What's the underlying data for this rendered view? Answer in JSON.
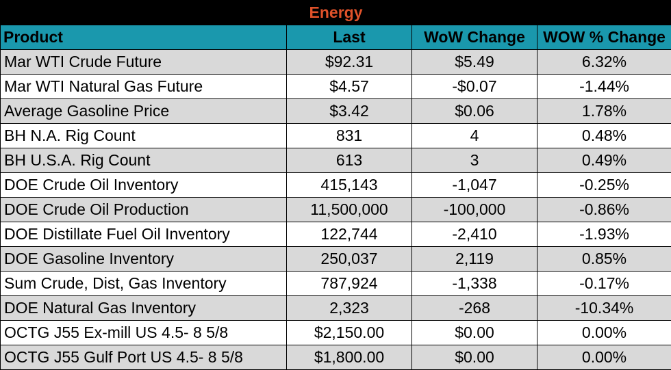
{
  "table": {
    "title": "Energy",
    "headers": [
      "Product",
      "Last",
      "WoW Change",
      "WOW % Change"
    ],
    "rows": [
      [
        "Mar WTI Crude Future",
        "$92.31",
        "$5.49",
        "6.32%"
      ],
      [
        "Mar WTI Natural Gas Future",
        "$4.57",
        "-$0.07",
        "-1.44%"
      ],
      [
        "Average Gasoline Price",
        "$3.42",
        "$0.06",
        "1.78%"
      ],
      [
        "BH N.A. Rig Count",
        "831",
        "4",
        "0.48%"
      ],
      [
        "BH U.S.A. Rig Count",
        "613",
        "3",
        "0.49%"
      ],
      [
        "DOE Crude Oil Inventory",
        "415,143",
        "-1,047",
        "-0.25%"
      ],
      [
        "DOE Crude Oil Production",
        "11,500,000",
        "-100,000",
        "-0.86%"
      ],
      [
        "DOE Distillate Fuel Oil Inventory",
        "122,744",
        "-2,410",
        "-1.93%"
      ],
      [
        "DOE Gasoline Inventory",
        "250,037",
        "2,119",
        "0.85%"
      ],
      [
        "Sum Crude, Dist, Gas Inventory",
        "787,924",
        "-1,338",
        "-0.17%"
      ],
      [
        "DOE Natural Gas Inventory",
        "2,323",
        "-268",
        "-10.34%"
      ],
      [
        "OCTG J55 Ex-mill US 4.5- 8 5/8",
        "$2,150.00",
        "$0.00",
        "0.00%"
      ],
      [
        "OCTG J55 Gulf Port US 4.5- 8 5/8",
        "$1,800.00",
        "$0.00",
        "0.00%"
      ]
    ]
  },
  "colors": {
    "title_background": "#000000",
    "title_text": "#e0522a",
    "header_background": "#1a98ad",
    "odd_row_background": "#d9d9d9",
    "even_row_background": "#ffffff"
  }
}
